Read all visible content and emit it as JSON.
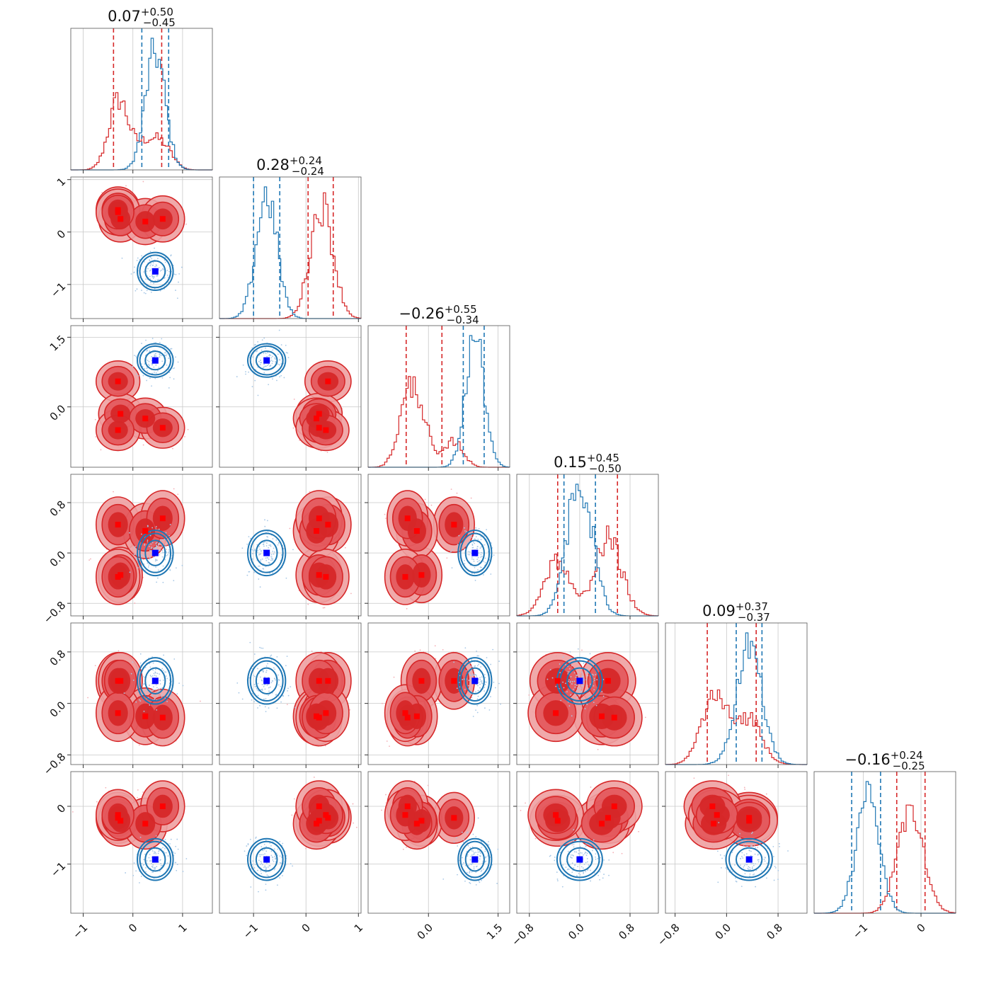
{
  "colors": {
    "red": "#d62728",
    "red_light": "#eea0a1",
    "blue": "#1f77b4",
    "truth_blue": "#0000ff",
    "truth_red": "#ff0000",
    "grid": "#c8c8c8"
  },
  "chart_data": {
    "type": "corner",
    "parameters": [
      {
        "index": 0,
        "median": "0.07",
        "plus": "+0.50",
        "minus": "−0.45",
        "range": [
          -1.25,
          1.6
        ],
        "ticks": [
          -1,
          0,
          1
        ],
        "tick_labels": [
          "−1",
          "0",
          "1"
        ]
      },
      {
        "index": 1,
        "median": "0.28",
        "plus": "+0.24",
        "minus": "−0.24",
        "range": [
          -1.65,
          1.05
        ],
        "ticks": [
          -1,
          0,
          1
        ],
        "tick_labels": [
          "−1",
          "0",
          "1"
        ]
      },
      {
        "index": 2,
        "median": "−0.26",
        "plus": "+0.55",
        "minus": "−0.34",
        "range": [
          -1.3,
          1.75
        ],
        "ticks": [
          0.0,
          1.5
        ],
        "tick_labels": [
          "0.0",
          "1.5"
        ]
      },
      {
        "index": 3,
        "median": "0.15",
        "plus": "+0.45",
        "minus": "−0.50",
        "range": [
          -1.0,
          1.25
        ],
        "ticks": [
          -0.8,
          0.0,
          0.8
        ],
        "tick_labels": [
          "−0.8",
          "0.0",
          "0.8"
        ]
      },
      {
        "index": 4,
        "median": "0.09",
        "plus": "+0.37",
        "minus": "−0.37",
        "range": [
          -0.95,
          1.25
        ],
        "ticks": [
          -0.8,
          0.0,
          0.8
        ],
        "tick_labels": [
          "−0.8",
          "0.0",
          "0.8"
        ]
      },
      {
        "index": 5,
        "median": "−0.16",
        "plus": "+0.24",
        "minus": "−0.25",
        "range": [
          -1.85,
          0.6
        ],
        "ticks": [
          -1,
          0
        ],
        "tick_labels": [
          "−1",
          "0"
        ]
      }
    ],
    "series": [
      {
        "name": "",
        "color": "red",
        "style": "filled",
        "quantiles": [
          [
            -0.39,
            0.58
          ],
          [
            0.04,
            0.52
          ],
          [
            -0.48,
            0.29
          ],
          [
            -0.35,
            0.6
          ],
          [
            -0.3,
            0.46
          ],
          [
            -0.42,
            0.07
          ]
        ],
        "modes": [
          [
            -0.3,
            0.42,
            0.55,
            0.45,
            0.35,
            -0.2
          ],
          [
            -0.25,
            0.25,
            -0.15,
            -0.35,
            0.35,
            -0.25
          ],
          [
            0.25,
            0.2,
            -0.25,
            0.35,
            -0.2,
            -0.3
          ],
          [
            0.6,
            0.25,
            -0.45,
            0.55,
            -0.22,
            0.0
          ],
          [
            -0.3,
            0.38,
            -0.5,
            -0.38,
            -0.15,
            -0.15
          ]
        ]
      },
      {
        "name": "",
        "color": "blue",
        "style": "lines",
        "quantiles": [
          [
            0.18,
            0.72
          ],
          [
            -1.0,
            -0.5
          ],
          [
            0.75,
            1.2
          ],
          [
            -0.25,
            0.25
          ],
          [
            0.15,
            0.55
          ],
          [
            -1.2,
            -0.7
          ]
        ],
        "modes": [
          [
            0.45,
            -0.75,
            1.0,
            0.0,
            0.35,
            -0.92
          ]
        ]
      }
    ],
    "truths": [
      {
        "color": "truth_blue",
        "point": [
          0.45,
          -0.75,
          1.0,
          0.0,
          0.35,
          -0.92
        ]
      }
    ],
    "legend": "none",
    "grid": true
  }
}
